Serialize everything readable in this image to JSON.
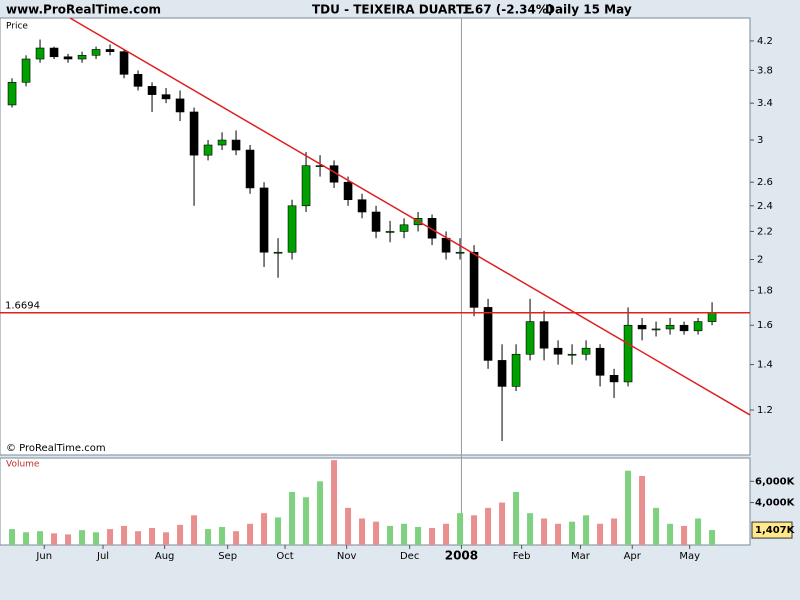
{
  "header": {
    "site": "www.ProRealTime.com",
    "title": "TDU - TEIXEIRA DUARTE",
    "quote": "1.67 (-2.34%)",
    "period": "Daily  15 May"
  },
  "chart_data": {
    "type": "candlestick",
    "price_label": "Price",
    "volume_label": "Volume",
    "copyright": "© ProRealTime.com",
    "log_scale": true,
    "open": [
      3.38,
      3.65,
      3.95,
      4.1,
      3.98,
      3.95,
      4.0,
      4.08,
      4.05,
      3.75,
      3.6,
      3.5,
      3.45,
      3.3,
      2.85,
      2.95,
      3.0,
      2.9,
      2.55,
      2.05,
      2.05,
      2.4,
      2.75,
      2.75,
      2.6,
      2.45,
      2.35,
      2.2,
      2.2,
      2.25,
      2.3,
      2.15,
      2.05,
      2.05,
      1.7,
      1.42,
      1.3,
      1.45,
      1.62,
      1.48,
      1.45,
      1.45,
      1.48,
      1.35,
      1.32,
      1.6,
      1.58,
      1.58,
      1.6,
      1.57,
      1.62
    ],
    "high": [
      3.7,
      4.0,
      4.22,
      4.12,
      4.02,
      4.05,
      4.12,
      4.15,
      4.08,
      3.8,
      3.65,
      3.58,
      3.55,
      3.35,
      3.0,
      3.08,
      3.1,
      2.95,
      2.6,
      2.15,
      2.45,
      2.88,
      2.85,
      2.8,
      2.65,
      2.5,
      2.4,
      2.28,
      2.3,
      2.35,
      2.33,
      2.2,
      2.15,
      2.1,
      1.75,
      1.5,
      1.5,
      1.75,
      1.68,
      1.52,
      1.5,
      1.52,
      1.5,
      1.38,
      1.7,
      1.64,
      1.62,
      1.64,
      1.62,
      1.64,
      1.73
    ],
    "low": [
      3.35,
      3.6,
      3.9,
      3.95,
      3.9,
      3.9,
      3.95,
      4.0,
      3.7,
      3.55,
      3.3,
      3.4,
      3.2,
      2.4,
      2.8,
      2.9,
      2.85,
      2.5,
      1.95,
      1.88,
      2.0,
      2.35,
      2.65,
      2.55,
      2.4,
      2.3,
      2.15,
      2.12,
      2.15,
      2.2,
      2.1,
      2.0,
      2.0,
      1.65,
      1.38,
      1.08,
      1.28,
      1.42,
      1.42,
      1.4,
      1.4,
      1.42,
      1.3,
      1.25,
      1.3,
      1.52,
      1.54,
      1.55,
      1.55,
      1.55,
      1.6
    ],
    "close": [
      3.65,
      3.95,
      4.1,
      3.98,
      3.95,
      4.0,
      4.08,
      4.05,
      3.75,
      3.6,
      3.5,
      3.45,
      3.3,
      2.85,
      2.95,
      3.0,
      2.9,
      2.55,
      2.05,
      2.05,
      2.4,
      2.75,
      2.75,
      2.6,
      2.45,
      2.35,
      2.2,
      2.2,
      2.25,
      2.3,
      2.15,
      2.05,
      2.05,
      1.7,
      1.42,
      1.3,
      1.45,
      1.62,
      1.48,
      1.45,
      1.45,
      1.48,
      1.35,
      1.32,
      1.6,
      1.58,
      1.58,
      1.6,
      1.57,
      1.62,
      1.67
    ],
    "volume": [
      1500000,
      1200000,
      1300000,
      1100000,
      1000000,
      1400000,
      1200000,
      1500000,
      1800000,
      1300000,
      1600000,
      1200000,
      1900000,
      2800000,
      1500000,
      1700000,
      1300000,
      2000000,
      3000000,
      2600000,
      5000000,
      4500000,
      6000000,
      8000000,
      3500000,
      2500000,
      2200000,
      1800000,
      2000000,
      1700000,
      1600000,
      2000000,
      3000000,
      2800000,
      3500000,
      4000000,
      5000000,
      3000000,
      2500000,
      2000000,
      2200000,
      2800000,
      2000000,
      2500000,
      7000000,
      6500000,
      3500000,
      2000000,
      1800000,
      2500000,
      1407000
    ],
    "last_volume_label": "1,407K",
    "up_color": "#00a000",
    "down_color": "#000000",
    "volume_up_color": "#7fd07f",
    "volume_down_color": "#e89090",
    "xlim": [
      -0.86,
      52.71
    ],
    "xticks": [
      {
        "value": 2.3,
        "label": "Jun"
      },
      {
        "value": 6.5,
        "label": "Jul"
      },
      {
        "value": 10.9,
        "label": "Aug"
      },
      {
        "value": 15.4,
        "label": "Sep"
      },
      {
        "value": 19.5,
        "label": "Oct"
      },
      {
        "value": 23.9,
        "label": "Nov"
      },
      {
        "value": 28.4,
        "label": "Dec"
      },
      {
        "value": 32.1,
        "label": "2008"
      },
      {
        "value": 36.4,
        "label": "Feb"
      },
      {
        "value": 40.6,
        "label": "Mar"
      },
      {
        "value": 44.3,
        "label": "Apr"
      },
      {
        "value": 48.4,
        "label": "May"
      }
    ],
    "ylim": [
      1.03,
      4.54
    ],
    "yticks": [
      1.2,
      1.4,
      1.6,
      1.8,
      2,
      2.2,
      2.4,
      2.6,
      3,
      3.4,
      3.8,
      4.2
    ],
    "y2lim": [
      0,
      8200000
    ],
    "y2ticks": [
      {
        "value": 4000000,
        "label": "4,000K"
      },
      {
        "value": 6000000,
        "label": "6,000K"
      }
    ],
    "hline": {
      "value": 1.6694,
      "label": "1.6694",
      "color": "#e02020"
    },
    "trendline": {
      "x": [
        4.14,
        52.71
      ],
      "y": [
        4.54,
        1.18
      ],
      "color": "#e02020"
    }
  }
}
